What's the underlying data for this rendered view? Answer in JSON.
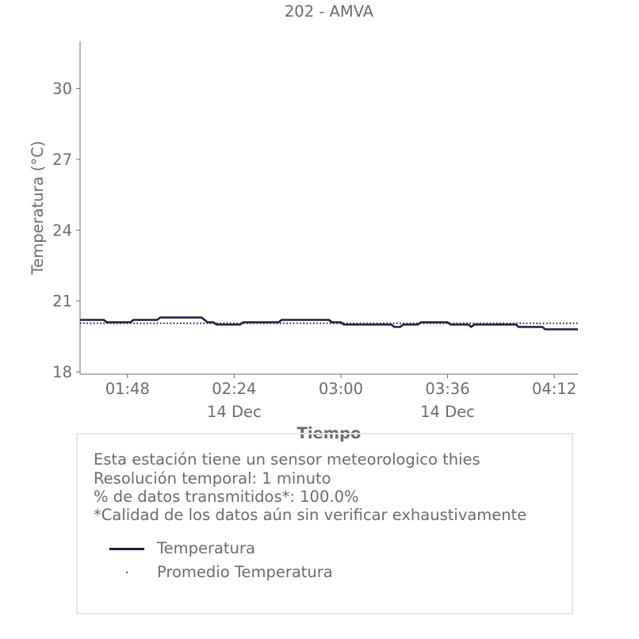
{
  "chart_data": {
    "type": "line",
    "title": "202 - AMVA",
    "xlabel": "Tiempo",
    "ylabel": "Temperatura (°C)",
    "x_range": [
      "01:32",
      "04:20"
    ],
    "ylim": [
      17.9,
      32
    ],
    "y_ticks": [
      18,
      21,
      24,
      27,
      30
    ],
    "x_ticks": [
      {
        "time": "01:48",
        "label": "01:48",
        "date_label": ""
      },
      {
        "time": "02:24",
        "label": "02:24",
        "date_label": "14 Dec"
      },
      {
        "time": "03:00",
        "label": "03:00",
        "date_label": ""
      },
      {
        "time": "03:36",
        "label": "03:36",
        "date_label": "14 Dec"
      },
      {
        "time": "04:12",
        "label": "04:12",
        "date_label": ""
      }
    ],
    "grid": false,
    "series": [
      {
        "name": "Temperatura",
        "style": "solid",
        "color": "#1d1f45",
        "points": [
          [
            "01:32",
            20.2
          ],
          [
            "01:40",
            20.2
          ],
          [
            "01:41",
            20.1
          ],
          [
            "01:49",
            20.1
          ],
          [
            "01:50",
            20.2
          ],
          [
            "01:58",
            20.2
          ],
          [
            "01:59",
            20.3
          ],
          [
            "02:13",
            20.3
          ],
          [
            "02:15",
            20.1
          ],
          [
            "02:17",
            20.1
          ],
          [
            "02:18",
            20.0
          ],
          [
            "02:26",
            20.0
          ],
          [
            "02:27",
            20.1
          ],
          [
            "02:39",
            20.1
          ],
          [
            "02:40",
            20.2
          ],
          [
            "02:56",
            20.2
          ],
          [
            "02:57",
            20.1
          ],
          [
            "03:00",
            20.1
          ],
          [
            "03:01",
            20.0
          ],
          [
            "03:17",
            20.0
          ],
          [
            "03:18",
            19.9
          ],
          [
            "03:20",
            19.9
          ],
          [
            "03:21",
            20.0
          ],
          [
            "03:26",
            20.0
          ],
          [
            "03:27",
            20.1
          ],
          [
            "03:36",
            20.1
          ],
          [
            "03:37",
            20.0
          ],
          [
            "03:43",
            20.0
          ],
          [
            "03:44",
            19.9
          ],
          [
            "03:45",
            20.0
          ],
          [
            "03:59",
            20.0
          ],
          [
            "04:00",
            19.9
          ],
          [
            "04:08",
            19.9
          ],
          [
            "04:09",
            19.8
          ],
          [
            "04:20",
            19.8
          ]
        ]
      },
      {
        "name": "Promedio Temperatura",
        "style": "dotted",
        "color": "#1d1f45",
        "points": [
          [
            "01:32",
            20.06
          ],
          [
            "04:20",
            20.06
          ]
        ]
      }
    ]
  },
  "info": {
    "lines": [
      "Esta estación tiene un sensor meteorologico thies",
      "Resolución temporal: 1 minuto",
      "% de datos transmitidos*: 100.0%",
      "*Calidad de los datos aún sin verificar exhaustivamente"
    ]
  },
  "legend": {
    "items": [
      {
        "label": "Temperatura",
        "style": "solid"
      },
      {
        "label": "Promedio Temperatura",
        "style": "dotted"
      }
    ]
  }
}
